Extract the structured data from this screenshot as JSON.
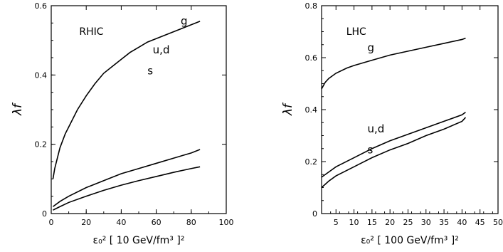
{
  "chart_data": [
    {
      "type": "line",
      "title": "",
      "annotation": "RHIC",
      "xlabel": "ε₀² [ 10 GeV/fm³ ]²",
      "ylabel": "λf",
      "xlim": [
        0,
        100
      ],
      "ylim": [
        0,
        0.6
      ],
      "xticks": [
        "0",
        "20",
        "40",
        "60",
        "80",
        "100"
      ],
      "yticks": [
        "0",
        "0.2",
        "0.4",
        "0.6"
      ],
      "grid": false,
      "series": [
        {
          "name": "g",
          "x": [
            1,
            2,
            3,
            5,
            8,
            10,
            15,
            20,
            25,
            30,
            35,
            40,
            45,
            50,
            55,
            60,
            65,
            70,
            75,
            80,
            85
          ],
          "y": [
            0.1,
            0.13,
            0.15,
            0.19,
            0.23,
            0.25,
            0.3,
            0.34,
            0.375,
            0.405,
            0.425,
            0.445,
            0.465,
            0.48,
            0.495,
            0.505,
            0.515,
            0.525,
            0.535,
            0.545,
            0.555
          ]
        },
        {
          "name": "u,d",
          "x": [
            1,
            5,
            10,
            20,
            30,
            40,
            50,
            60,
            70,
            80,
            85
          ],
          "y": [
            0.02,
            0.035,
            0.05,
            0.075,
            0.095,
            0.115,
            0.13,
            0.145,
            0.16,
            0.175,
            0.185
          ]
        },
        {
          "name": "s",
          "x": [
            1,
            5,
            10,
            20,
            30,
            40,
            50,
            60,
            70,
            80,
            85
          ],
          "y": [
            0.01,
            0.02,
            0.032,
            0.05,
            0.067,
            0.082,
            0.095,
            0.107,
            0.119,
            0.13,
            0.135
          ]
        }
      ]
    },
    {
      "type": "line",
      "title": "",
      "annotation": "LHC",
      "xlabel": "ε₀² [ 100 GeV/fm³ ]²",
      "ylabel": "λf",
      "xlim": [
        1,
        50
      ],
      "ylim": [
        0,
        0.8
      ],
      "xticks": [
        "5",
        "10",
        "15",
        "20",
        "25",
        "30",
        "35",
        "40",
        "45",
        "50"
      ],
      "yticks": [
        "0",
        "0.2",
        "0.4",
        "0.6",
        "0.8"
      ],
      "grid": false,
      "series": [
        {
          "name": "g",
          "x": [
            1,
            2,
            3,
            5,
            8,
            10,
            15,
            20,
            25,
            30,
            35,
            40,
            41
          ],
          "y": [
            0.48,
            0.505,
            0.52,
            0.54,
            0.56,
            0.57,
            0.59,
            0.61,
            0.625,
            0.64,
            0.655,
            0.67,
            0.675
          ]
        },
        {
          "name": "u,d",
          "x": [
            1,
            3,
            5,
            10,
            15,
            20,
            25,
            30,
            35,
            40,
            41
          ],
          "y": [
            0.14,
            0.16,
            0.18,
            0.215,
            0.25,
            0.28,
            0.305,
            0.33,
            0.355,
            0.38,
            0.39
          ]
        },
        {
          "name": "s",
          "x": [
            1,
            3,
            5,
            10,
            15,
            20,
            25,
            30,
            35,
            40,
            41
          ],
          "y": [
            0.1,
            0.125,
            0.145,
            0.18,
            0.215,
            0.245,
            0.27,
            0.3,
            0.325,
            0.355,
            0.37
          ]
        }
      ]
    }
  ]
}
